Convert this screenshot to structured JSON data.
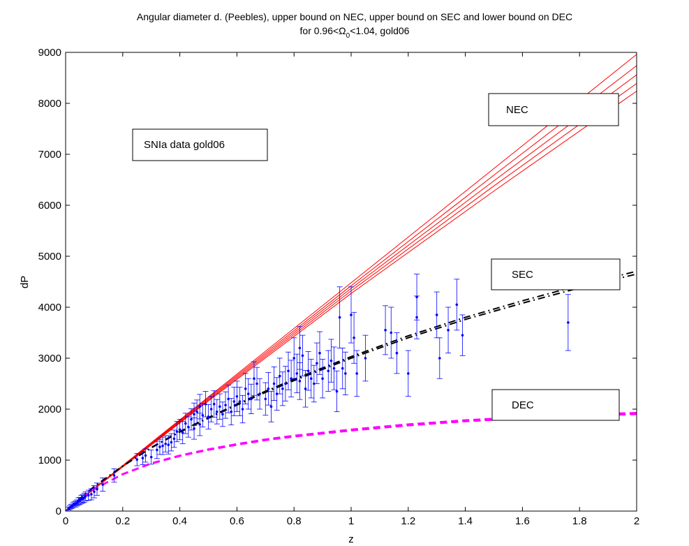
{
  "chart_data": {
    "type": "scatter",
    "title_line1": "Angular diameter d. (Peebles), upper bound on NEC, upper bound on SEC and lower bound on DEC",
    "title_line2": {
      "prefix": "for 0.96<Ω",
      "subscript": "0",
      "suffix": "<1.04, gold06"
    },
    "xlabel": "z",
    "ylabel": "dP",
    "xlim": [
      0,
      2
    ],
    "ylim": [
      0,
      9000
    ],
    "xticks": [
      0,
      0.2,
      0.4,
      0.6,
      0.8,
      1,
      1.2,
      1.4,
      1.6,
      1.8,
      2
    ],
    "xtick_labels": [
      "0",
      "0.2",
      "0.4",
      "0.6",
      "0.8",
      "1",
      "1.2",
      "1.4",
      "1.6",
      "1.8",
      "2"
    ],
    "yticks": [
      0,
      1000,
      2000,
      3000,
      4000,
      5000,
      6000,
      7000,
      8000,
      9000
    ],
    "ytick_labels": [
      "0",
      "1000",
      "2000",
      "3000",
      "4000",
      "5000",
      "6000",
      "7000",
      "8000",
      "9000"
    ],
    "grid": false,
    "annotations": [
      {
        "text": "NEC",
        "z": 1.53,
        "dP": 8000
      },
      {
        "text": "SEC",
        "z": 1.55,
        "dP": 4840
      },
      {
        "text": "DEC",
        "z": 1.55,
        "dP": 2080
      },
      {
        "text": "SNIa data gold06",
        "z": 0.28,
        "dP": 7220
      }
    ],
    "colors": {
      "nec": "#ff0000",
      "sec": "#000000",
      "dec": "#ff00ff",
      "data": "#0000ff"
    },
    "series": [
      {
        "style": "solid-red",
        "curves": [
          {
            "x": [
              0,
              0.5,
              1,
              1.5,
              2
            ],
            "y": [
              0,
              2240,
              4480,
              6720,
              8960
            ]
          },
          {
            "x": [
              0,
              0.5,
              1,
              1.5,
              2
            ],
            "y": [
              0,
              2220,
              4420,
              6590,
              8740
            ]
          },
          {
            "x": [
              0,
              0.5,
              1,
              1.5,
              2
            ],
            "y": [
              0,
              2200,
              4370,
              6480,
              8560
            ]
          },
          {
            "x": [
              0,
              0.5,
              1,
              1.5,
              2
            ],
            "y": [
              0,
              2180,
              4320,
              6380,
              8390
            ]
          },
          {
            "x": [
              0,
              0.5,
              1,
              1.5,
              2
            ],
            "y": [
              0,
              2160,
              4270,
              6280,
              8240
            ]
          }
        ]
      },
      {
        "style": "dash-dot-black",
        "curves": [
          {
            "x": [
              0,
              0.1,
              0.2,
              0.3,
              0.4,
              0.5,
              0.6,
              0.7,
              0.8,
              0.9,
              1.0,
              1.2,
              1.4,
              1.6,
              1.8,
              2.0
            ],
            "y": [
              0,
              480,
              880,
              1240,
              1550,
              1820,
              2080,
              2330,
              2560,
              2780,
              3000,
              3400,
              3760,
              4080,
              4380,
              4650
            ]
          },
          {
            "x": [
              0,
              0.1,
              0.2,
              0.3,
              0.4,
              0.5,
              0.6,
              0.7,
              0.8,
              0.9,
              1.0,
              1.2,
              1.4,
              1.6,
              1.8,
              2.0
            ],
            "y": [
              0,
              483,
              886,
              1250,
              1562,
              1836,
              2100,
              2352,
              2586,
              2810,
              3030,
              3438,
              3802,
              4126,
              4430,
              4705
            ]
          }
        ]
      },
      {
        "style": "dash-magenta",
        "curves": [
          {
            "x": [
              0,
              0.1,
              0.2,
              0.3,
              0.4,
              0.5,
              0.6,
              0.7,
              0.8,
              1.0,
              1.2,
              1.4,
              1.6,
              1.8,
              2.0
            ],
            "y": [
              0,
              430,
              720,
              930,
              1080,
              1200,
              1300,
              1390,
              1460,
              1580,
              1680,
              1760,
              1820,
              1870,
              1900
            ]
          },
          {
            "x": [
              0,
              0.1,
              0.2,
              0.3,
              0.4,
              0.5,
              0.6,
              0.7,
              0.8,
              1.0,
              1.2,
              1.4,
              1.6,
              1.8,
              2.0
            ],
            "y": [
              0,
              434,
              727,
              940,
              1092,
              1214,
              1316,
              1408,
              1480,
              1602,
              1704,
              1784,
              1846,
              1896,
              1928
            ]
          }
        ]
      },
      {
        "style": "data-errorbars",
        "points": [
          [
            0.01,
            50,
            30
          ],
          [
            0.015,
            70,
            40
          ],
          [
            0.02,
            90,
            40
          ],
          [
            0.025,
            110,
            50
          ],
          [
            0.03,
            130,
            50
          ],
          [
            0.035,
            140,
            60
          ],
          [
            0.04,
            160,
            60
          ],
          [
            0.045,
            190,
            70
          ],
          [
            0.05,
            200,
            70
          ],
          [
            0.055,
            230,
            80
          ],
          [
            0.06,
            240,
            80
          ],
          [
            0.065,
            260,
            90
          ],
          [
            0.07,
            290,
            90
          ],
          [
            0.08,
            310,
            100
          ],
          [
            0.09,
            330,
            110
          ],
          [
            0.1,
            380,
            120
          ],
          [
            0.11,
            430,
            120
          ],
          [
            0.13,
            520,
            130
          ],
          [
            0.17,
            700,
            130
          ],
          [
            0.25,
            1010,
            120
          ],
          [
            0.27,
            1040,
            130
          ],
          [
            0.28,
            1090,
            130
          ],
          [
            0.3,
            1060,
            140
          ],
          [
            0.32,
            1200,
            170
          ],
          [
            0.33,
            1260,
            150
          ],
          [
            0.34,
            1280,
            170
          ],
          [
            0.35,
            1320,
            160
          ],
          [
            0.36,
            1300,
            180
          ],
          [
            0.37,
            1350,
            170
          ],
          [
            0.38,
            1420,
            170
          ],
          [
            0.39,
            1560,
            200
          ],
          [
            0.4,
            1600,
            200
          ],
          [
            0.41,
            1540,
            220
          ],
          [
            0.42,
            1720,
            200
          ],
          [
            0.43,
            1650,
            200
          ],
          [
            0.44,
            1800,
            210
          ],
          [
            0.45,
            1900,
            220
          ],
          [
            0.45,
            1620,
            210
          ],
          [
            0.46,
            1950,
            230
          ],
          [
            0.47,
            2050,
            240
          ],
          [
            0.47,
            1700,
            220
          ],
          [
            0.48,
            1880,
            230
          ],
          [
            0.49,
            2100,
            250
          ],
          [
            0.5,
            1850,
            240
          ],
          [
            0.51,
            2000,
            250
          ],
          [
            0.52,
            2100,
            260
          ],
          [
            0.53,
            1950,
            240
          ],
          [
            0.54,
            2050,
            250
          ],
          [
            0.55,
            1900,
            240
          ],
          [
            0.56,
            2080,
            260
          ],
          [
            0.57,
            2200,
            270
          ],
          [
            0.58,
            1950,
            260
          ],
          [
            0.59,
            2150,
            280
          ],
          [
            0.6,
            2250,
            300
          ],
          [
            0.61,
            2150,
            280
          ],
          [
            0.62,
            2000,
            270
          ],
          [
            0.63,
            2400,
            300
          ],
          [
            0.64,
            2300,
            300
          ],
          [
            0.65,
            2200,
            290
          ],
          [
            0.66,
            2600,
            330
          ],
          [
            0.67,
            2500,
            320
          ],
          [
            0.68,
            2300,
            300
          ],
          [
            0.7,
            2200,
            320
          ],
          [
            0.71,
            2400,
            320
          ],
          [
            0.72,
            2050,
            300
          ],
          [
            0.73,
            2500,
            330
          ],
          [
            0.74,
            2300,
            320
          ],
          [
            0.75,
            2650,
            350
          ],
          [
            0.76,
            2400,
            330
          ],
          [
            0.77,
            2500,
            340
          ],
          [
            0.78,
            2750,
            370
          ],
          [
            0.79,
            2600,
            360
          ],
          [
            0.8,
            3000,
            400
          ],
          [
            0.81,
            2700,
            380
          ],
          [
            0.82,
            3200,
            420
          ],
          [
            0.82,
            2550,
            360
          ],
          [
            0.83,
            3050,
            400
          ],
          [
            0.84,
            2400,
            360
          ],
          [
            0.85,
            2750,
            380
          ],
          [
            0.86,
            2600,
            380
          ],
          [
            0.87,
            2500,
            360
          ],
          [
            0.88,
            2900,
            400
          ],
          [
            0.89,
            3100,
            420
          ],
          [
            0.9,
            2600,
            380
          ],
          [
            0.92,
            2750,
            400
          ],
          [
            0.93,
            2950,
            420
          ],
          [
            0.94,
            2800,
            420
          ],
          [
            0.95,
            2350,
            400
          ],
          [
            0.96,
            3800,
            600
          ],
          [
            0.97,
            2800,
            400
          ],
          [
            0.98,
            2700,
            420
          ],
          [
            1.0,
            3850,
            550
          ],
          [
            1.01,
            3400,
            500
          ],
          [
            1.02,
            2700,
            450
          ],
          [
            1.05,
            3000,
            450
          ],
          [
            1.12,
            3550,
            480
          ],
          [
            1.14,
            3500,
            500
          ],
          [
            1.16,
            3100,
            400
          ],
          [
            1.2,
            2700,
            450
          ],
          [
            1.23,
            4200,
            450
          ],
          [
            1.23,
            3800,
            420
          ],
          [
            1.3,
            3850,
            450
          ],
          [
            1.31,
            3000,
            400
          ],
          [
            1.34,
            3550,
            450
          ],
          [
            1.37,
            4050,
            500
          ],
          [
            1.39,
            3450,
            400
          ],
          [
            1.76,
            3700,
            550
          ]
        ]
      }
    ]
  }
}
